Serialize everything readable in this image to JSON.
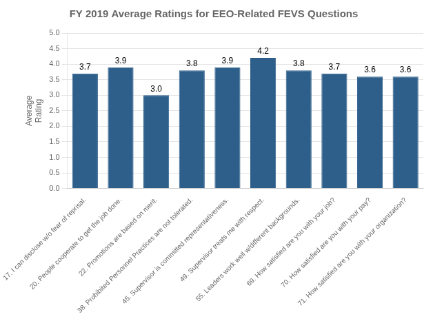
{
  "chart_data": {
    "type": "bar",
    "title": "FY 2019 Average Ratings for EEO-Related FEVS Questions",
    "ylabel": "Average\nRating",
    "categories": [
      "17. I can disclose w/o fear of reprisal.",
      "20. People cooperate to get the job done.",
      "22. Promotions are based on merit.",
      "38. Prohibited Personnel Practices are not tolerated.",
      "45. Supervisor is committed representativeness.",
      "49. Supervisor treats me with respect.",
      "55. Leaders work well w/different backgrounds.",
      "69. How satisfied are you with your job?",
      "70. How satisfied are you with your pay?",
      "71. How satisfied are you with your organization?"
    ],
    "values": [
      3.7,
      3.9,
      3.0,
      3.8,
      3.9,
      4.2,
      3.8,
      3.7,
      3.6,
      3.6
    ],
    "value_labels": [
      "3.7",
      "3.9",
      "3.0",
      "3.8",
      "3.9",
      "4.2",
      "3.8",
      "3.7",
      "3.6",
      "3.6"
    ],
    "data_labels": true,
    "color": "#2E5F8A",
    "ylim": [
      0.0,
      5.0
    ],
    "yticks": [
      {
        "value": 0.0,
        "label": "0.0"
      },
      0.5,
      {
        "value": 1.0,
        "label": "1.0"
      },
      1.5,
      {
        "value": 2.0,
        "label": "2.0"
      },
      2.5,
      {
        "value": 3.0,
        "label": "3.0"
      },
      3.5,
      {
        "value": 4.0,
        "label": "4.0"
      },
      4.5,
      {
        "value": 5.0,
        "label": "5.0"
      }
    ],
    "grid": true
  }
}
